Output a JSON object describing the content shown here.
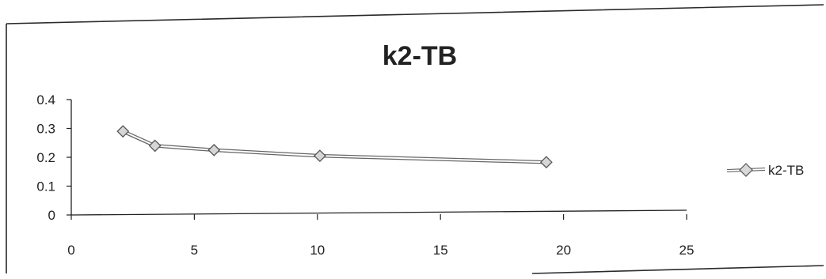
{
  "chart_data": {
    "type": "line",
    "title": "k2-TB",
    "xlabel": "",
    "ylabel": "",
    "xlim": [
      0,
      25
    ],
    "ylim": [
      0,
      0.4
    ],
    "x_ticks": [
      0,
      5,
      10,
      15,
      20,
      25
    ],
    "y_ticks": [
      0,
      0.1,
      0.2,
      0.3,
      0.4
    ],
    "x_tick_labels": [
      "0",
      "5",
      "10",
      "15",
      "20",
      "25"
    ],
    "y_tick_labels": [
      "0",
      "0.1",
      "0.2",
      "0.3",
      "0.4"
    ],
    "grid": false,
    "legend_position": "right",
    "series": [
      {
        "name": "k2-TB",
        "marker": "diamond",
        "x": [
          2.1,
          3.4,
          5.8,
          10.1,
          19.3
        ],
        "y": [
          0.29,
          0.24,
          0.225,
          0.205,
          0.183
        ]
      }
    ]
  }
}
